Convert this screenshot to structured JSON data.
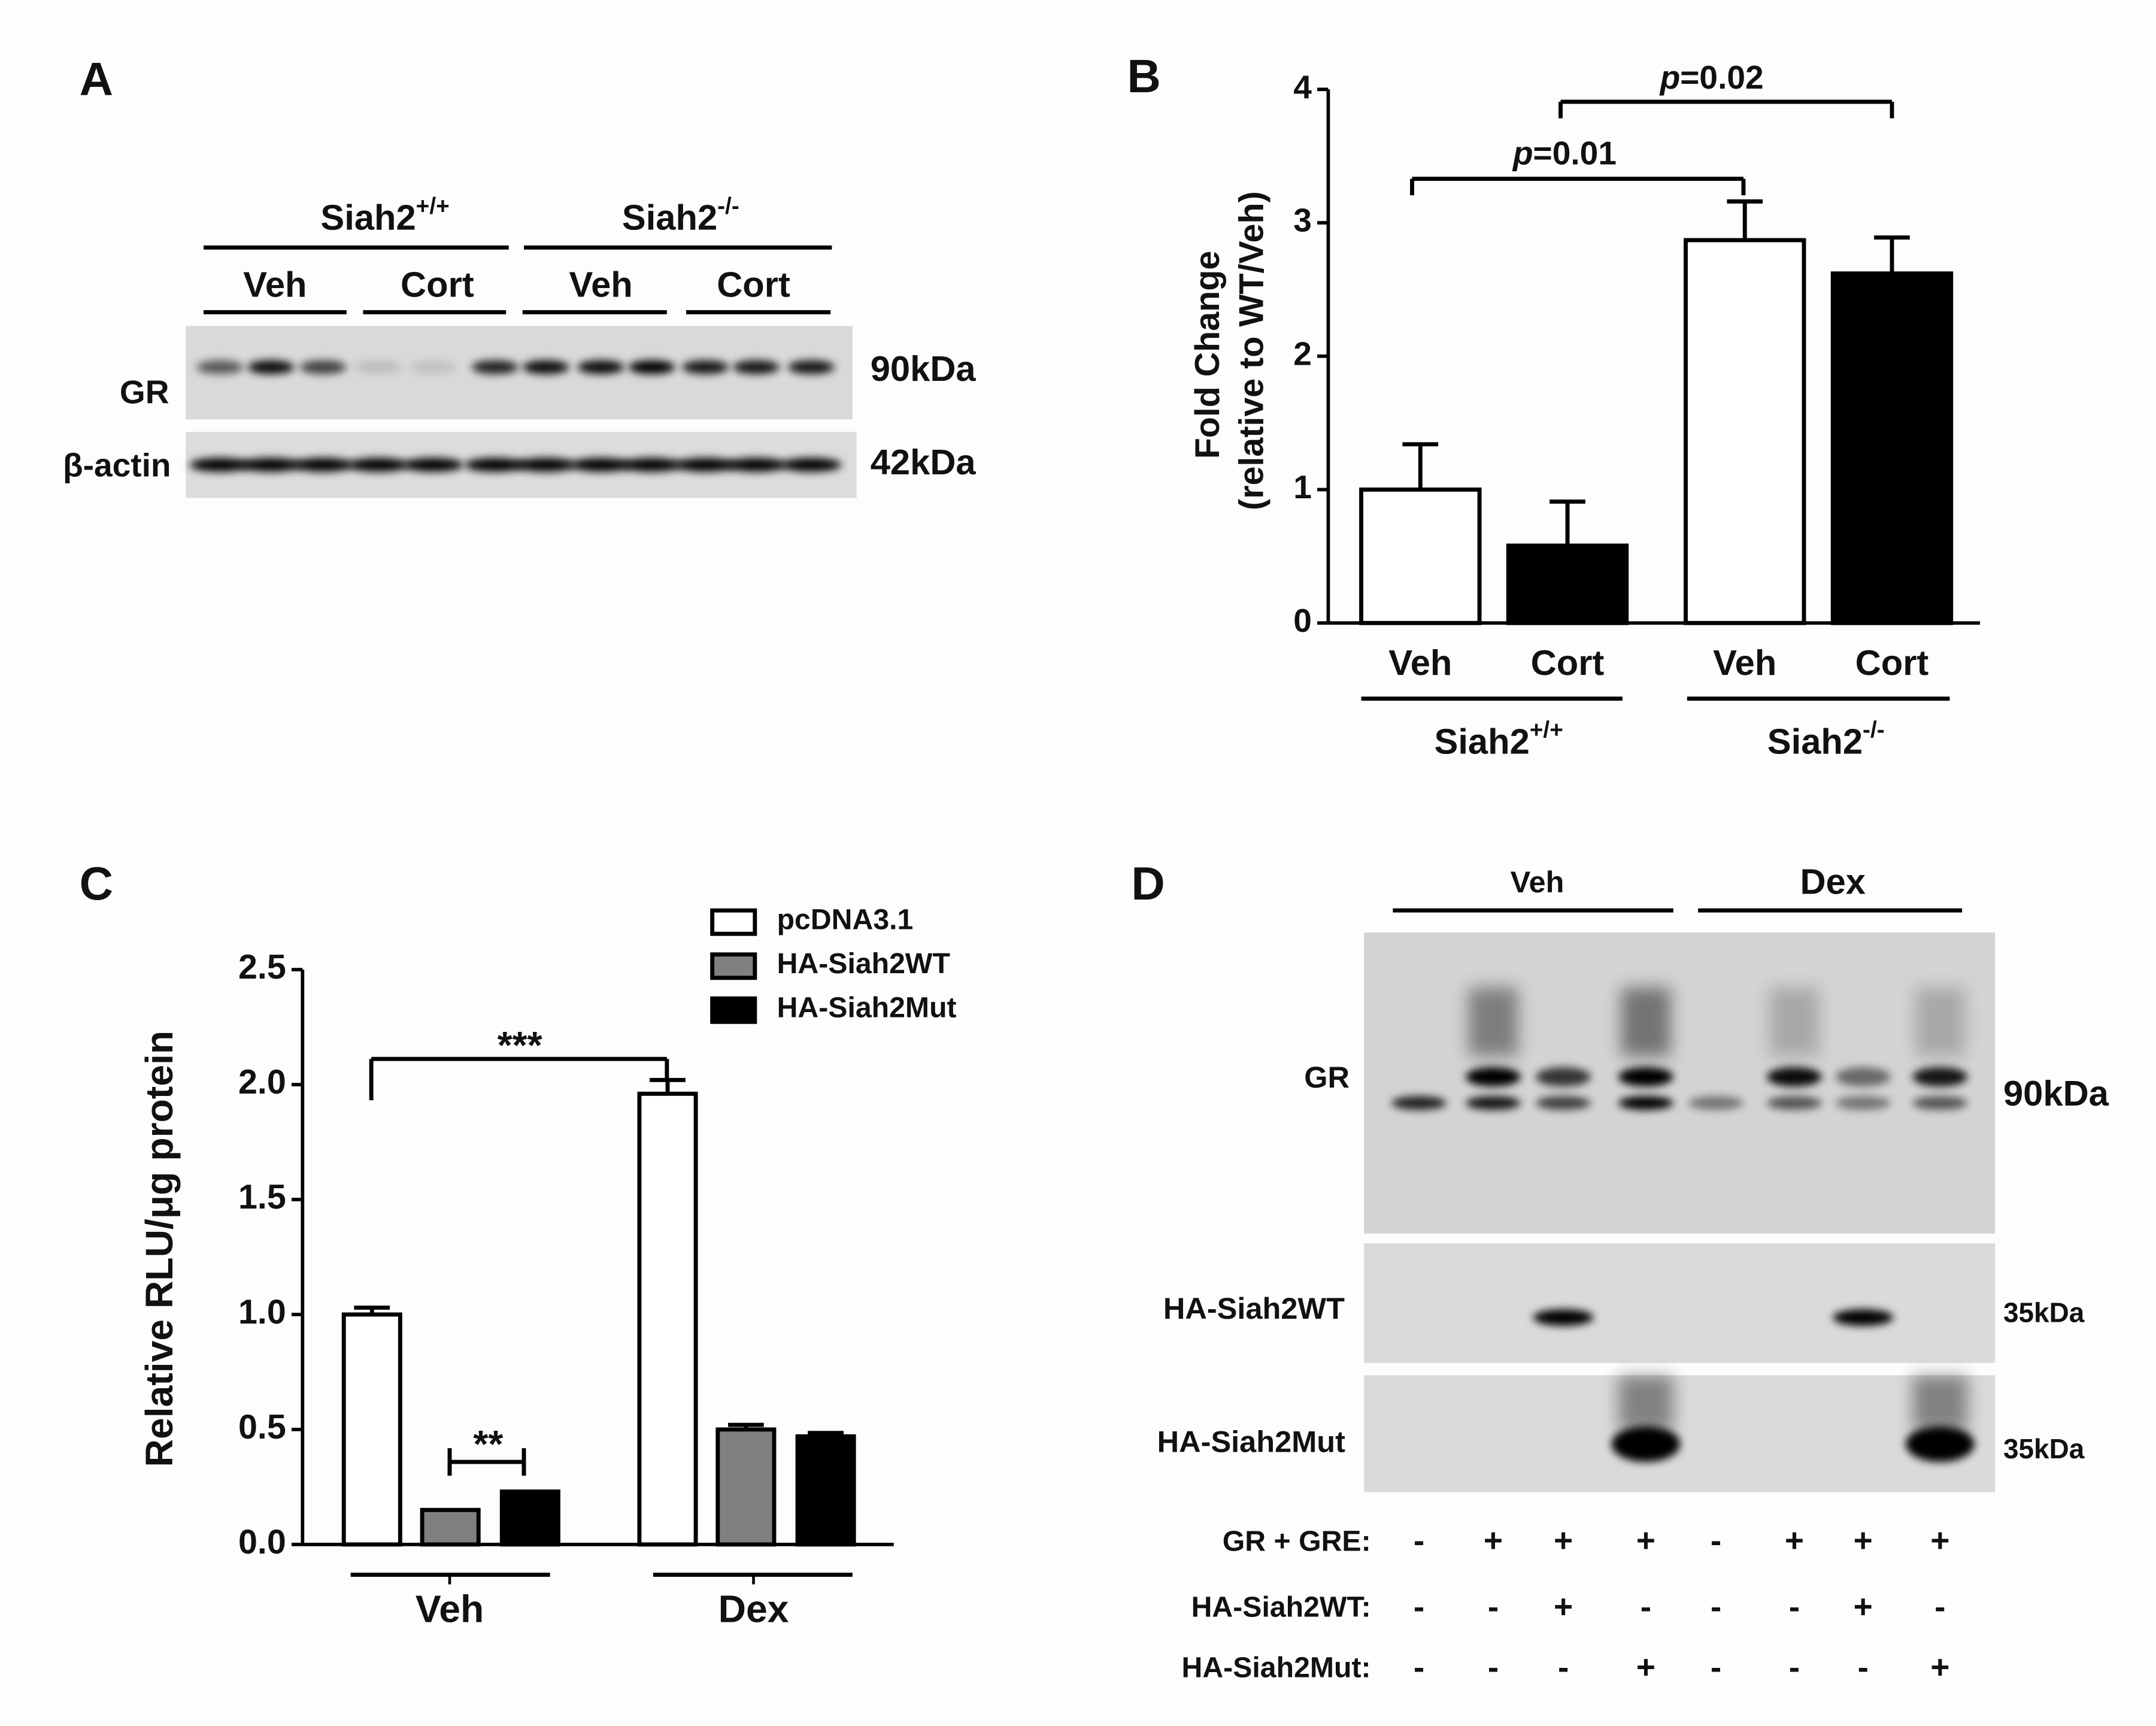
{
  "panel_labels": [
    "A",
    "B",
    "C",
    "D"
  ],
  "blot_a": {
    "groups": [
      {
        "text": "Siah2",
        "sup": "+/+"
      },
      {
        "text": "Siah2",
        "sup": "-/-"
      }
    ],
    "conditions": [
      "Veh",
      "Cort",
      "Veh",
      "Cort"
    ],
    "rows": [
      "GR",
      "β-actin"
    ],
    "sizes": [
      "90kDa",
      "42kDa"
    ]
  },
  "chart_data": [
    {
      "type": "bar",
      "ylabel": [
        "Fold Change",
        "(relative to WT/Veh)"
      ],
      "categories": [
        "Veh",
        "Cort",
        "Veh",
        "Cort"
      ],
      "groups": [
        {
          "text": "Siah2",
          "sup": "+/+"
        },
        {
          "text": "Siah2",
          "sup": "-/-"
        }
      ],
      "values": [
        1.0,
        0.58,
        2.87,
        2.62
      ],
      "errors": [
        0.34,
        0.33,
        0.29,
        0.27
      ],
      "colors": [
        "#ffffff",
        "#000000",
        "#ffffff",
        "#000000"
      ],
      "ylim": [
        0,
        4
      ],
      "yticks": [
        0,
        1,
        2,
        3,
        4
      ],
      "annotations": [
        {
          "italic": "p",
          "text": "=0.01"
        },
        {
          "italic": "p",
          "text": "=0.02"
        }
      ]
    },
    {
      "type": "grouped_bar",
      "ylabel": "Relative RLU/μg protein",
      "categories": [
        "Veh",
        "Dex"
      ],
      "series": [
        {
          "name": "pcDNA3.1",
          "color": "#ffffff",
          "values": [
            1.0,
            1.96
          ],
          "errors": [
            0.03,
            0.06
          ]
        },
        {
          "name": "HA-Siah2WT",
          "color": "#808080",
          "values": [
            0.15,
            0.5
          ],
          "errors": [
            null,
            0.02
          ]
        },
        {
          "name": "HA-Siah2Mut",
          "color": "#000000",
          "values": [
            0.23,
            0.47
          ],
          "errors": [
            null,
            0.015
          ]
        }
      ],
      "ylim": [
        0,
        2.5
      ],
      "yticks": [
        {
          "value": 0,
          "label": "0.0"
        },
        0.5,
        {
          "value": 1,
          "label": "1.0"
        },
        1.5,
        {
          "value": 2,
          "label": "2.0"
        },
        2.5
      ],
      "annotations": [
        {
          "text": "***"
        },
        {
          "text": "**"
        }
      ]
    }
  ],
  "blot_d": {
    "groups": [
      "Veh",
      "Dex"
    ],
    "rows": [
      "GR",
      "HA-Siah2WT",
      "HA-Siah2Mut"
    ],
    "sizes": [
      "90kDa",
      "35kDa",
      "35kDa"
    ],
    "conditions": {
      "labels": [
        "GR + GRE:",
        "HA-Siah2WT:",
        "HA-Siah2Mut:"
      ],
      "values": [
        [
          "-",
          "+",
          "+",
          "+",
          "-",
          "+",
          "+",
          "+"
        ],
        [
          "-",
          "-",
          "+",
          "-",
          "-",
          "-",
          "+",
          "-"
        ],
        [
          "-",
          "-",
          "-",
          "+",
          "-",
          "-",
          "-",
          "+"
        ]
      ]
    }
  }
}
